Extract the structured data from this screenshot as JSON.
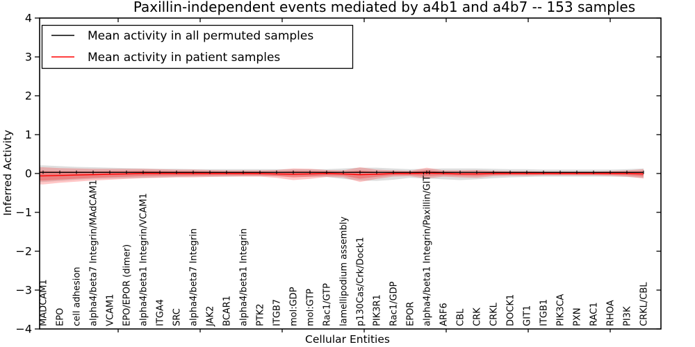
{
  "chart_data": {
    "type": "line",
    "title": "Paxillin-independent events mediated by a4b1 and a4b7 -- 153 samples",
    "xlabel": "Cellular Entities",
    "ylabel": "Inferred Activity",
    "ylim": [
      -4,
      4
    ],
    "yticks": [
      4,
      3,
      2,
      1,
      0,
      -1,
      -2,
      -3,
      -4
    ],
    "grid": false,
    "legend": {
      "position": "upper left",
      "entries": [
        {
          "label": "Mean activity in all permuted samples",
          "color": "#000000"
        },
        {
          "label": "Mean activity in patient samples",
          "color": "#ff0000"
        }
      ]
    },
    "categories": [
      "MADCAM1",
      "EPO",
      "cell adhesion",
      "alpha4/beta7 Integrin/MAdCAM1",
      "VCAM1",
      "EPO/EPOR (dimer)",
      "alpha4/beta1 Integrin/VCAM1",
      "ITGA4",
      "SRC",
      "alpha4/beta7 Integrin",
      "JAK2",
      "BCAR1",
      "alpha4/beta1 Integrin",
      "PTK2",
      "ITGB7",
      "mol:GDP",
      "mol:GTP",
      "Rac1/GTP",
      "lamellipodium assembly",
      "p130Cas/Crk/Dock1",
      "PIK3R1",
      "Rac1/GDP",
      "EPOR",
      "alpha4/beta1 Integrin/Paxillin/GIT1",
      "ARF6",
      "CBL",
      "CRK",
      "CRKL",
      "DOCK1",
      "GIT1",
      "ITGB1",
      "PIK3CA",
      "PXN",
      "RAC1",
      "RHOA",
      "PI3K",
      "CRKL/CBL"
    ],
    "series": [
      {
        "name": "Mean activity in all permuted samples",
        "color": "#000000",
        "band_fill": "#000000",
        "band_opacity": 0.13,
        "mean": [
          0.03,
          0.03,
          0.03,
          0.03,
          0.03,
          0.03,
          0.03,
          0.03,
          0.03,
          0.03,
          0.03,
          0.03,
          0.03,
          0.03,
          0.03,
          0.03,
          0.03,
          0.03,
          0.03,
          0.03,
          0.03,
          0.03,
          0.03,
          0.03,
          0.03,
          0.03,
          0.03,
          0.03,
          0.03,
          0.03,
          0.03,
          0.03,
          0.03,
          0.03,
          0.03,
          0.03,
          0.03
        ],
        "band_upper": [
          0.21,
          0.19,
          0.17,
          0.16,
          0.15,
          0.14,
          0.13,
          0.12,
          0.12,
          0.11,
          0.11,
          0.11,
          0.11,
          0.11,
          0.11,
          0.11,
          0.11,
          0.11,
          0.13,
          0.15,
          0.15,
          0.13,
          0.11,
          0.12,
          0.13,
          0.13,
          0.13,
          0.12,
          0.11,
          0.11,
          0.1,
          0.1,
          0.1,
          0.1,
          0.1,
          0.11,
          0.13
        ],
        "band_lower": [
          -0.22,
          -0.19,
          -0.16,
          -0.14,
          -0.13,
          -0.12,
          -0.11,
          -0.1,
          -0.09,
          -0.08,
          -0.08,
          -0.08,
          -0.07,
          -0.07,
          -0.07,
          -0.08,
          -0.08,
          -0.09,
          -0.14,
          -0.18,
          -0.19,
          -0.16,
          -0.11,
          -0.13,
          -0.15,
          -0.17,
          -0.15,
          -0.12,
          -0.1,
          -0.09,
          -0.08,
          -0.08,
          -0.08,
          -0.08,
          -0.08,
          -0.09,
          -0.11
        ]
      },
      {
        "name": "Mean activity in patient samples",
        "color": "#ff0000",
        "band_fill": "#ff0000",
        "band_opacity": 0.22,
        "mean": [
          -0.06,
          -0.05,
          -0.04,
          -0.03,
          -0.02,
          -0.01,
          0.0,
          0.0,
          0.0,
          0.0,
          0.0,
          0.0,
          0.0,
          0.0,
          -0.01,
          -0.02,
          -0.01,
          0.0,
          -0.01,
          -0.03,
          -0.02,
          0.0,
          0.0,
          0.01,
          0.0,
          -0.01,
          -0.01,
          0.0,
          0.0,
          0.0,
          0.0,
          0.0,
          0.0,
          0.0,
          0.0,
          0.0,
          -0.01
        ],
        "band_upper": [
          0.16,
          0.14,
          0.13,
          0.12,
          0.12,
          0.12,
          0.12,
          0.11,
          0.1,
          0.1,
          0.09,
          0.08,
          0.08,
          0.08,
          0.09,
          0.13,
          0.12,
          0.09,
          0.08,
          0.16,
          0.1,
          0.08,
          0.07,
          0.15,
          0.08,
          0.08,
          0.09,
          0.07,
          0.06,
          0.06,
          0.05,
          0.05,
          0.05,
          0.05,
          0.06,
          0.08,
          0.11
        ],
        "band_lower": [
          -0.28,
          -0.24,
          -0.21,
          -0.18,
          -0.16,
          -0.14,
          -0.12,
          -0.11,
          -0.1,
          -0.1,
          -0.09,
          -0.08,
          -0.08,
          -0.08,
          -0.11,
          -0.17,
          -0.14,
          -0.09,
          -0.1,
          -0.22,
          -0.14,
          -0.08,
          -0.07,
          -0.13,
          -0.08,
          -0.1,
          -0.11,
          -0.07,
          -0.06,
          -0.06,
          -0.05,
          -0.05,
          -0.05,
          -0.05,
          -0.06,
          -0.08,
          -0.13
        ]
      }
    ]
  }
}
